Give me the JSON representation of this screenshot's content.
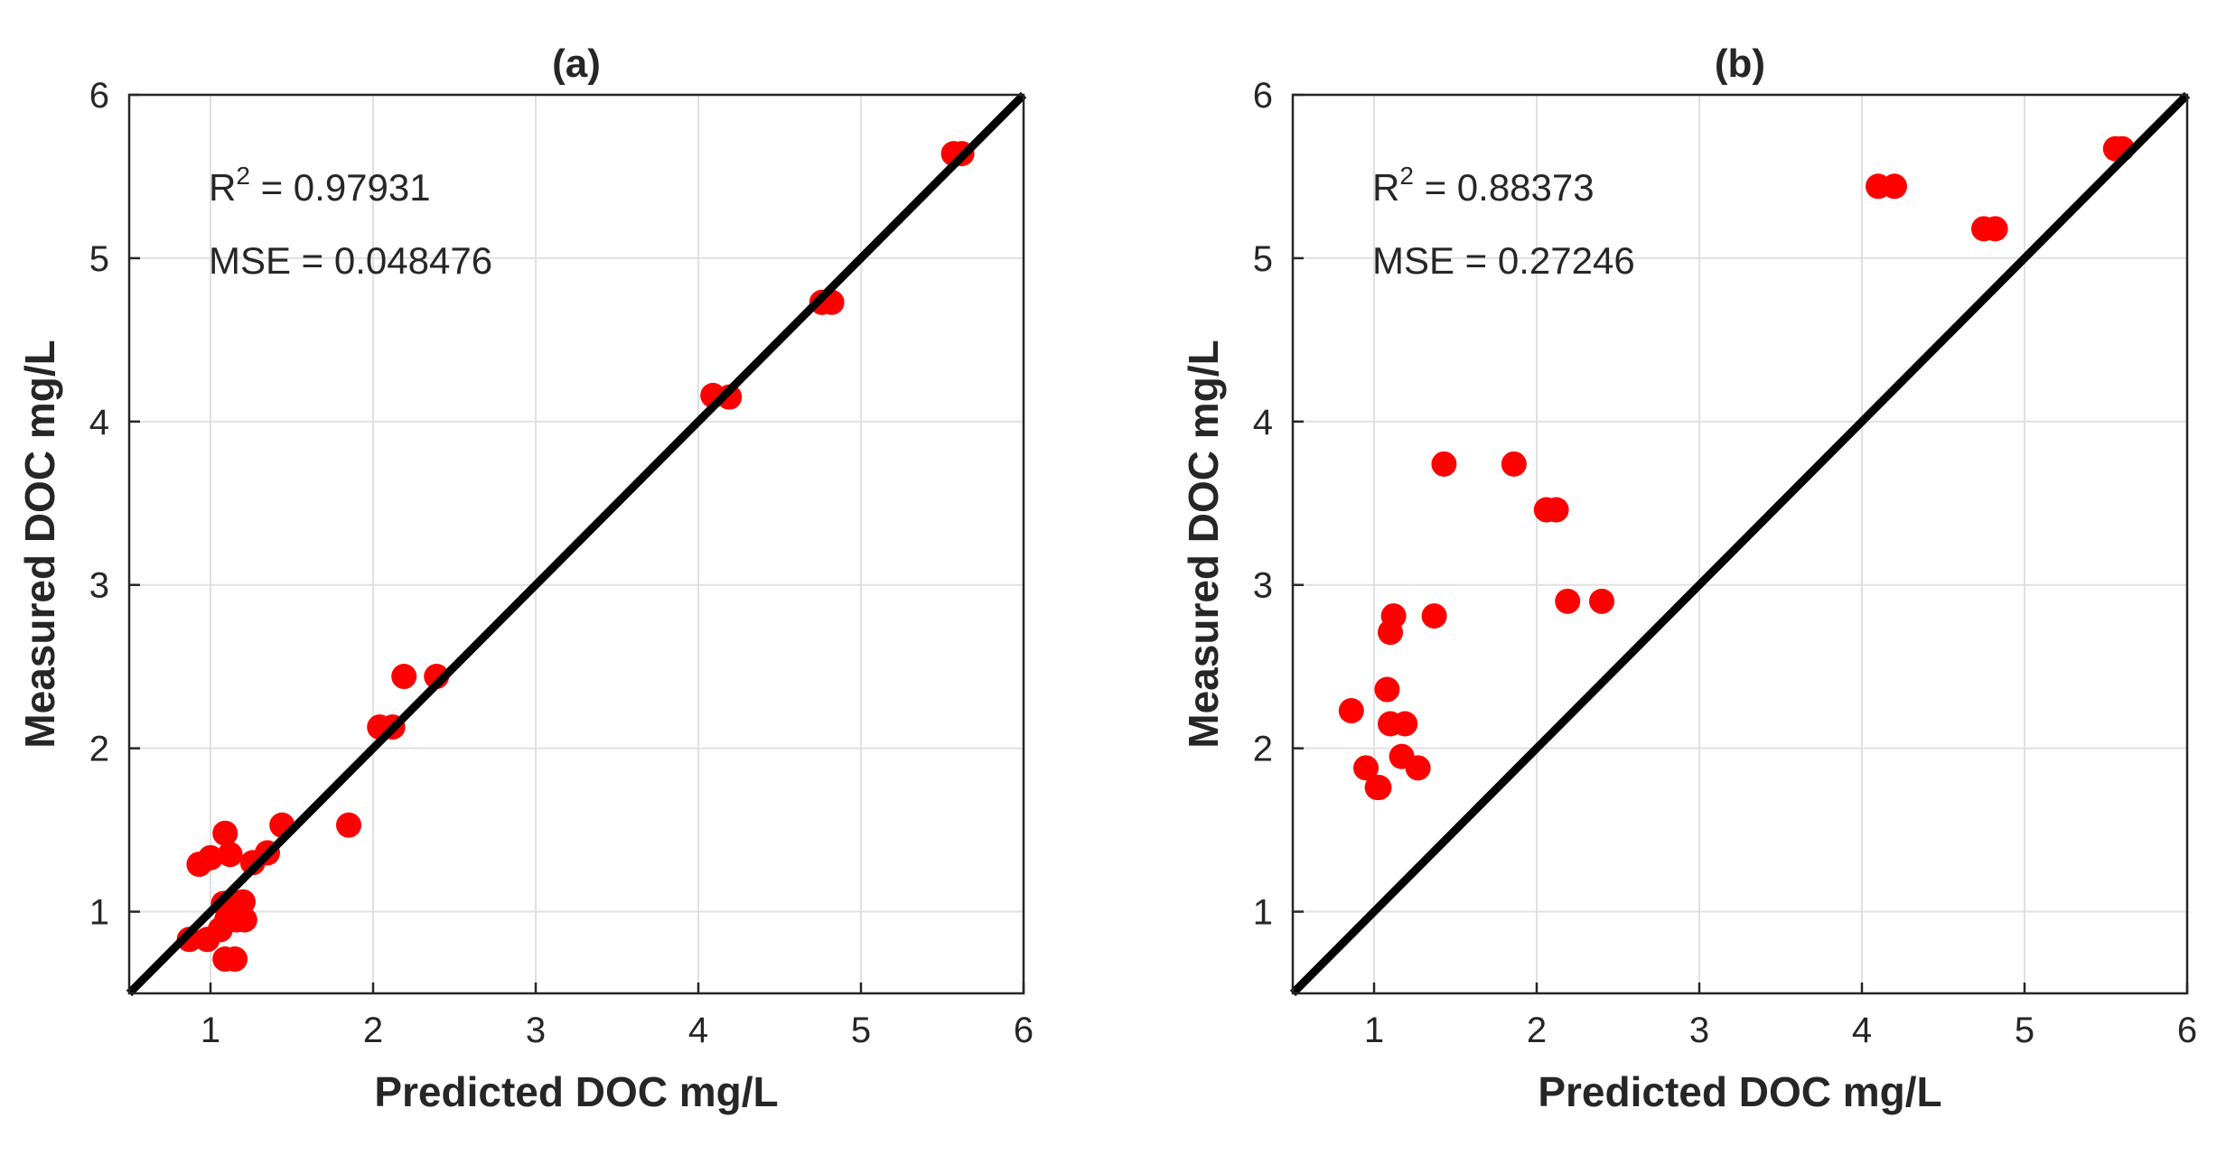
{
  "chart_data": [
    {
      "type": "scatter",
      "title": "(a)",
      "xlabel": "Predicted DOC mg/L",
      "ylabel": "Measured DOC mg/L",
      "xlim": [
        0.5,
        6
      ],
      "ylim": [
        0.5,
        6
      ],
      "xticks": [
        "1",
        "2",
        "3",
        "4",
        "5",
        "6"
      ],
      "yticks": [
        "1",
        "2",
        "3",
        "4",
        "5",
        "6"
      ],
      "grid": true,
      "r2_label": "R",
      "r2_sup": "2",
      "r2_value": " = 0.97931",
      "mse_text": "MSE = 0.048476",
      "reference_line": {
        "name": "y = x",
        "x": [
          0.5,
          6
        ],
        "y": [
          0.5,
          6
        ]
      },
      "series": [
        {
          "name": "samples",
          "x": [
            5.57,
            5.62,
            4.76,
            4.82,
            4.09,
            4.19,
            2.19,
            2.39,
            2.04,
            2.12,
            1.85,
            1.44,
            1.35,
            1.26,
            1.09,
            1.12,
            1.0,
            0.93,
            1.08,
            1.2,
            1.1,
            1.16,
            1.21,
            1.06,
            0.98,
            0.87,
            1.09,
            1.15
          ],
          "y": [
            5.64,
            5.64,
            4.73,
            4.73,
            4.16,
            4.15,
            2.44,
            2.44,
            2.13,
            2.13,
            1.53,
            1.53,
            1.36,
            1.3,
            1.48,
            1.35,
            1.33,
            1.29,
            1.05,
            1.06,
            0.95,
            0.95,
            0.95,
            0.89,
            0.83,
            0.83,
            0.71,
            0.71
          ]
        }
      ]
    },
    {
      "type": "scatter",
      "title": "(b)",
      "xlabel": "Predicted DOC mg/L",
      "ylabel": "Measured DOC mg/L",
      "xlim": [
        0.5,
        6
      ],
      "ylim": [
        0.5,
        6
      ],
      "xticks": [
        "1",
        "2",
        "3",
        "4",
        "5",
        "6"
      ],
      "yticks": [
        "1",
        "2",
        "3",
        "4",
        "5",
        "6"
      ],
      "grid": true,
      "r2_label": "R",
      "r2_sup": "2",
      "r2_value": " = 0.88373",
      "mse_text": "MSE = 0.27246",
      "reference_line": {
        "name": "y = x",
        "x": [
          0.5,
          6
        ],
        "y": [
          0.5,
          6
        ]
      },
      "series": [
        {
          "name": "samples",
          "x": [
            5.56,
            5.6,
            4.1,
            4.2,
            4.75,
            4.82,
            1.43,
            1.86,
            2.06,
            2.12,
            2.19,
            2.4,
            1.12,
            1.1,
            1.37,
            1.08,
            0.86,
            1.1,
            1.19,
            1.17,
            0.95,
            1.27,
            1.02,
            1.03
          ],
          "y": [
            5.67,
            5.67,
            5.44,
            5.44,
            5.18,
            5.18,
            3.74,
            3.74,
            3.46,
            3.46,
            2.9,
            2.9,
            2.81,
            2.71,
            2.81,
            2.36,
            2.23,
            2.15,
            2.15,
            1.95,
            1.88,
            1.88,
            1.76,
            1.76
          ]
        }
      ]
    }
  ],
  "colors": {
    "points": "#ff0000",
    "line": "#000000"
  }
}
